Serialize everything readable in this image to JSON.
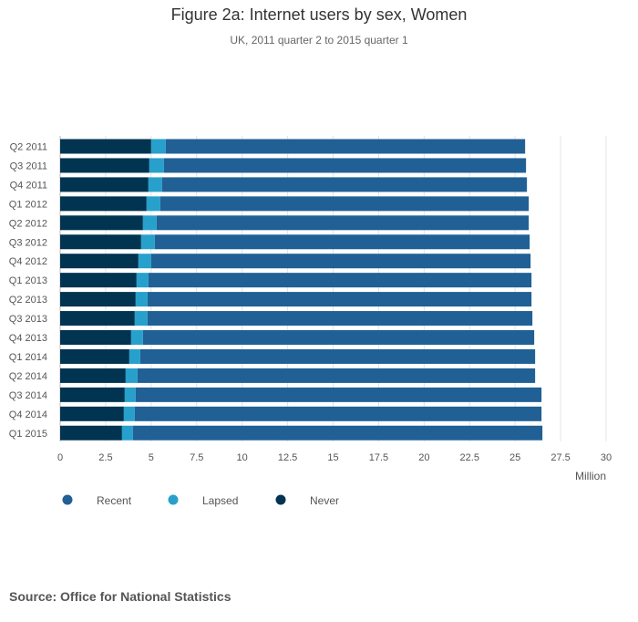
{
  "header": {
    "title": "Figure 2a: Internet users by sex, Women",
    "subtitle": "UK, 2011 quarter 2 to 2015 quarter 1"
  },
  "footer": {
    "source": "Source: Office for National Statistics"
  },
  "chart_data": {
    "type": "bar",
    "orientation": "horizontal",
    "stacked": true,
    "title": "Figure 2a: Internet users by sex, Women",
    "subtitle": "UK, 2011 quarter 2 to 2015 quarter 1",
    "xlabel": "Million",
    "ylabel": "",
    "xlim": [
      0,
      30
    ],
    "x_ticks": [
      0,
      2.5,
      5,
      7.5,
      10,
      12.5,
      15,
      17.5,
      20,
      22.5,
      25,
      27.5,
      30
    ],
    "x_tick_labels": [
      "0",
      "2.5",
      "5",
      "7.5",
      "10",
      "12.5",
      "15",
      "17.5",
      "20",
      "22.5",
      "25",
      "27.5",
      "30"
    ],
    "grid": true,
    "legend_position": "bottom-left",
    "categories": [
      "Q2 2011",
      "Q3 2011",
      "Q4 2011",
      "Q1 2012",
      "Q2 2012",
      "Q3 2012",
      "Q4 2012",
      "Q1 2013",
      "Q2 2013",
      "Q3 2013",
      "Q4 2013",
      "Q1 2014",
      "Q2 2014",
      "Q3 2014",
      "Q4 2014",
      "Q1 2015"
    ],
    "series": [
      {
        "name": "Never",
        "color": "#003450",
        "values": [
          5.0,
          4.9,
          4.85,
          4.75,
          4.55,
          4.45,
          4.3,
          4.2,
          4.15,
          4.1,
          3.9,
          3.8,
          3.6,
          3.55,
          3.5,
          3.4
        ]
      },
      {
        "name": "Lapsed",
        "color": "#27a0cc",
        "values": [
          0.8,
          0.8,
          0.75,
          0.75,
          0.75,
          0.75,
          0.7,
          0.65,
          0.65,
          0.7,
          0.65,
          0.6,
          0.65,
          0.6,
          0.6,
          0.6
        ]
      },
      {
        "name": "Recent",
        "color": "#206095",
        "values": [
          19.75,
          19.9,
          20.05,
          20.25,
          20.45,
          20.6,
          20.85,
          21.05,
          21.1,
          21.15,
          21.5,
          21.7,
          21.85,
          22.3,
          22.35,
          22.5
        ]
      }
    ],
    "legend_order": [
      "Recent",
      "Lapsed",
      "Never"
    ]
  }
}
